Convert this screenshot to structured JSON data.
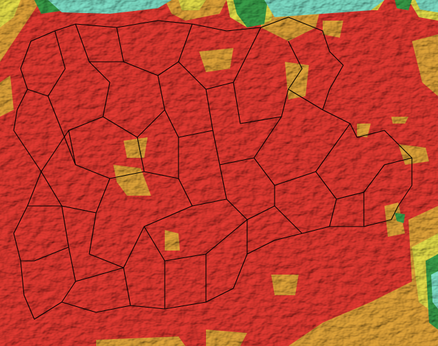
{
  "map": {
    "colors": {
      "high": "#e53a32",
      "medium": "#e3a53a",
      "low": "#e8e04a",
      "lower": "#3aa04a",
      "lowest": "#7fe0c8",
      "boundary": "#000000"
    }
  }
}
